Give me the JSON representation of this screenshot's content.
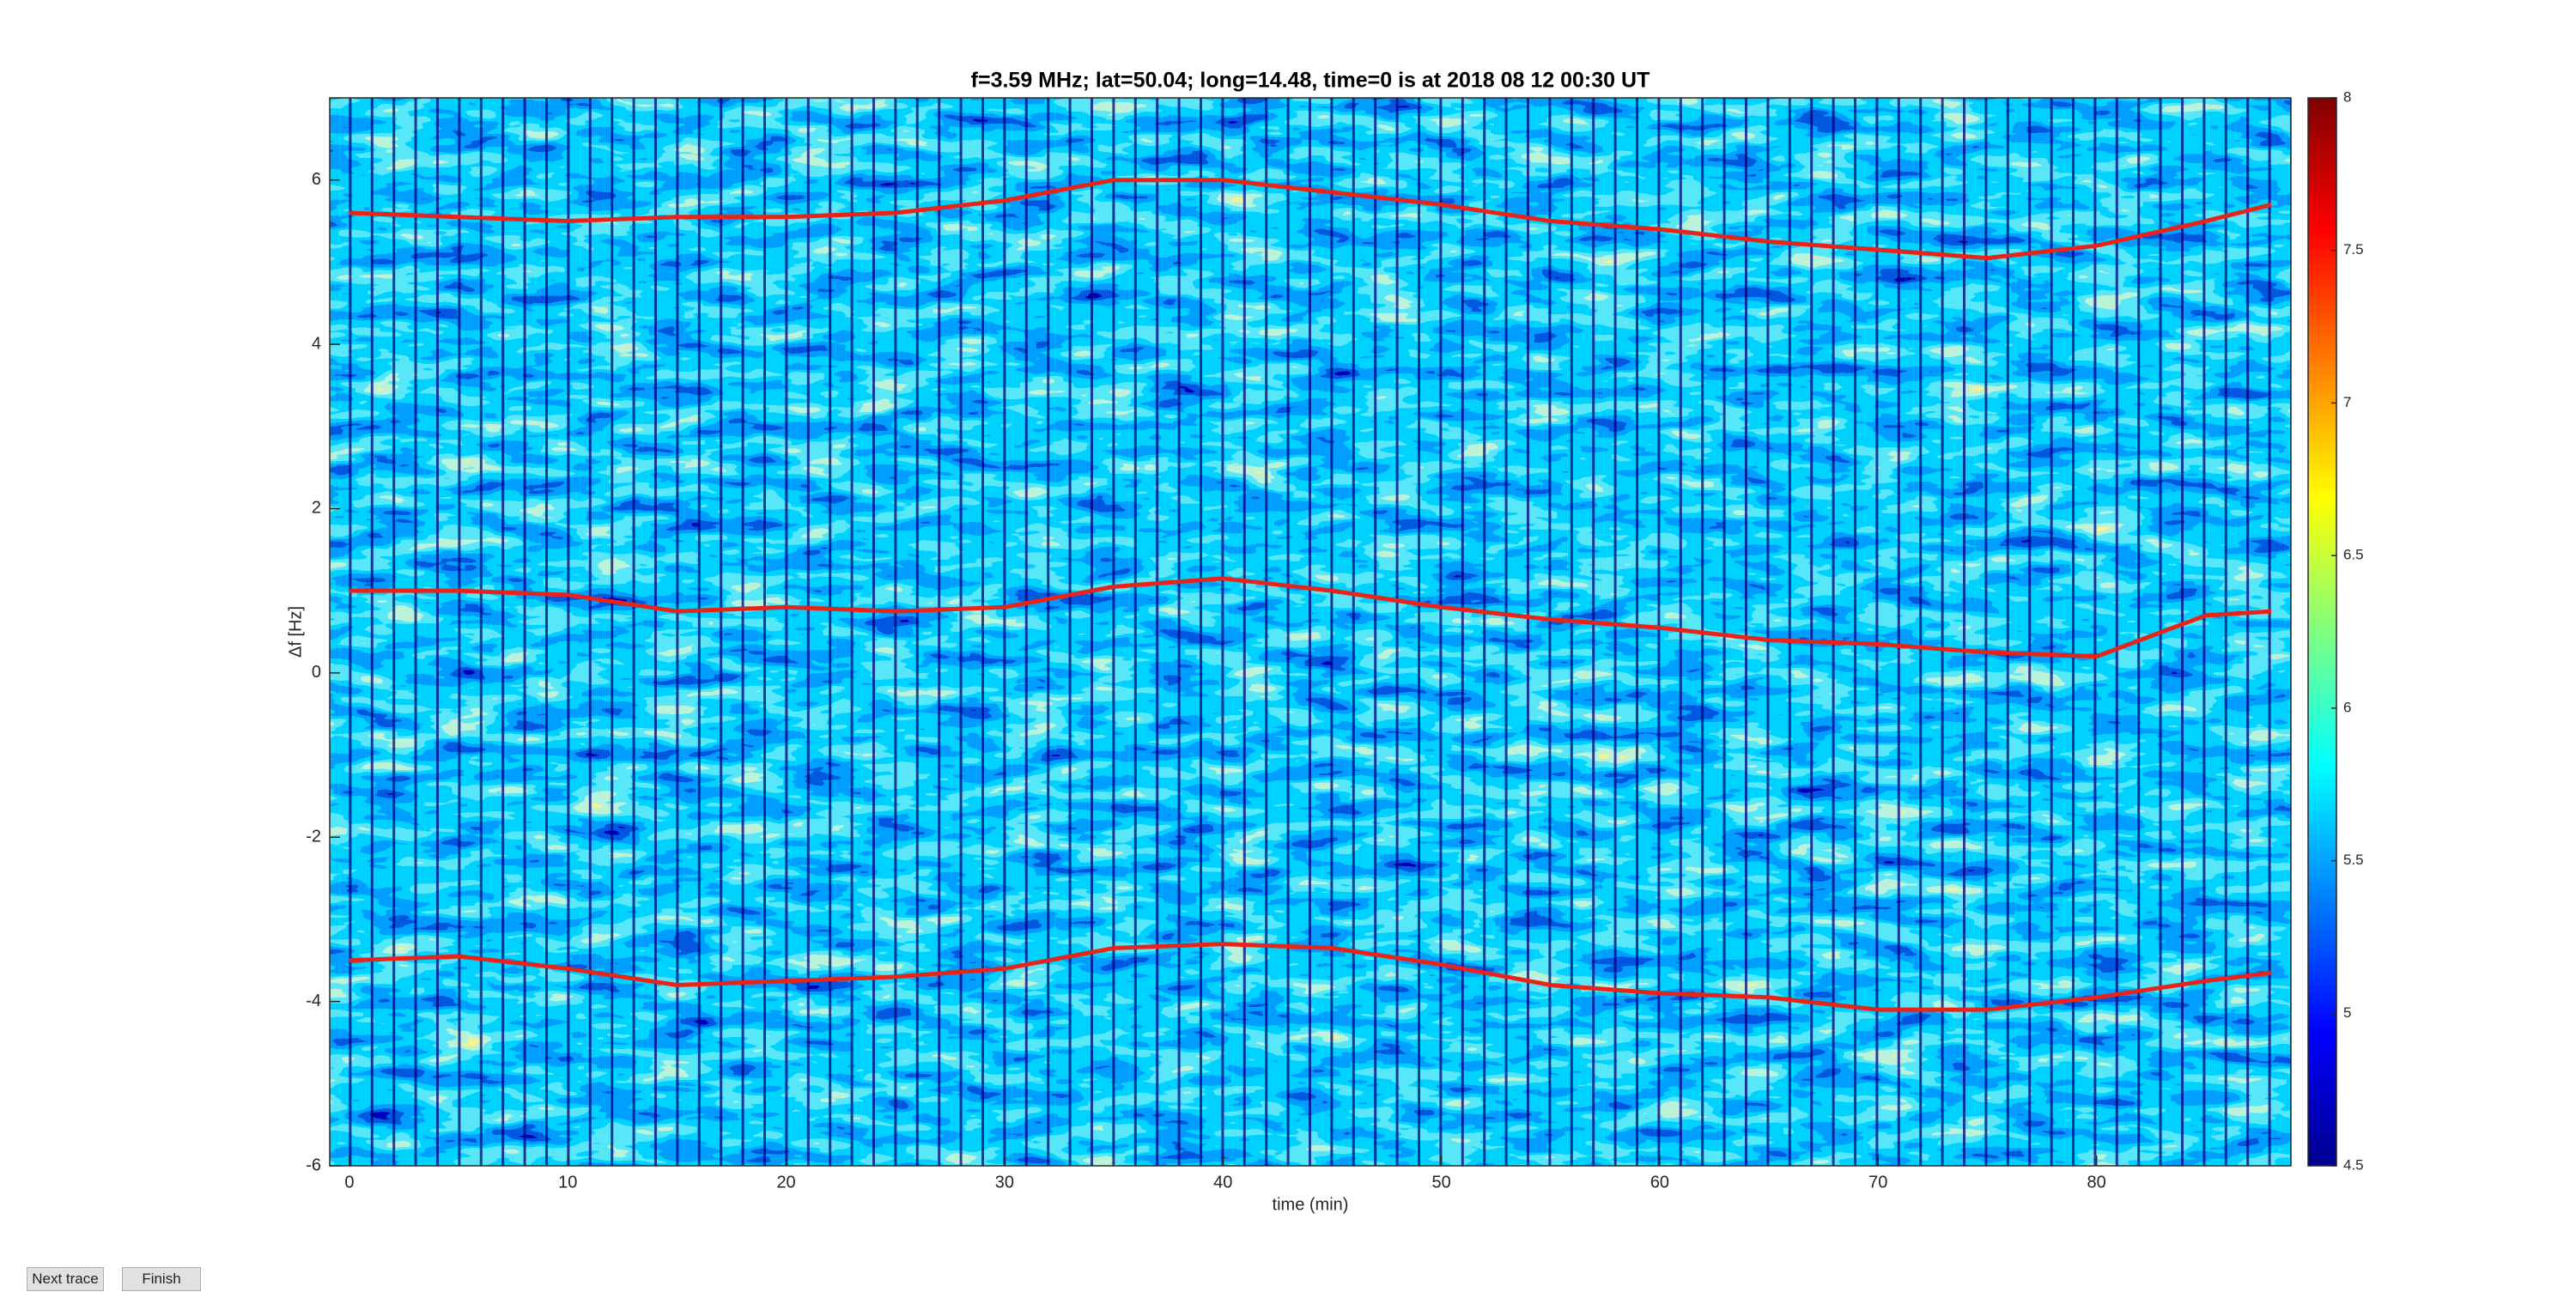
{
  "chart_data": {
    "type": "spectrogram",
    "title": "f=3.59 MHz;  lat=50.04; long=14.48, time=0 is at 2018 08 12 00:30 UT",
    "xlabel": "time (min)",
    "ylabel": "Δf [Hz]",
    "xlim": [
      -0.9,
      88.9
    ],
    "xticks": [
      0,
      10,
      20,
      30,
      40,
      50,
      60,
      70,
      80
    ],
    "ylim": [
      -6,
      7
    ],
    "yticks": [
      -6,
      -4,
      -2,
      0,
      2,
      4,
      6
    ],
    "clim": [
      4.5,
      8
    ],
    "cticks": [
      4.5,
      5,
      5.5,
      6,
      6.5,
      7,
      7.5,
      8
    ],
    "x": [
      0,
      5,
      10,
      15,
      20,
      25,
      30,
      35,
      40,
      45,
      50,
      55,
      60,
      65,
      70,
      75,
      80,
      85,
      88
    ],
    "series": [
      {
        "color": "#e8241a",
        "values": [
          5.6,
          5.55,
          5.5,
          5.55,
          5.55,
          5.6,
          5.75,
          6.0,
          6.0,
          5.85,
          5.7,
          5.5,
          5.4,
          5.25,
          5.15,
          5.05,
          5.2,
          5.5,
          5.7
        ]
      },
      {
        "color": "#e8241a",
        "values": [
          1.0,
          1.0,
          0.95,
          0.75,
          0.8,
          0.75,
          0.8,
          1.05,
          1.15,
          1.0,
          0.8,
          0.65,
          0.55,
          0.4,
          0.35,
          0.25,
          0.2,
          0.7,
          0.75
        ]
      },
      {
        "color": "#e8241a",
        "values": [
          -3.5,
          -3.45,
          -3.6,
          -3.8,
          -3.75,
          -3.7,
          -3.6,
          -3.35,
          -3.3,
          -3.35,
          -3.55,
          -3.8,
          -3.9,
          -3.95,
          -4.1,
          -4.1,
          -3.95,
          -3.75,
          -3.65
        ]
      }
    ]
  },
  "buttons": [
    "Next trace",
    "Finish"
  ]
}
